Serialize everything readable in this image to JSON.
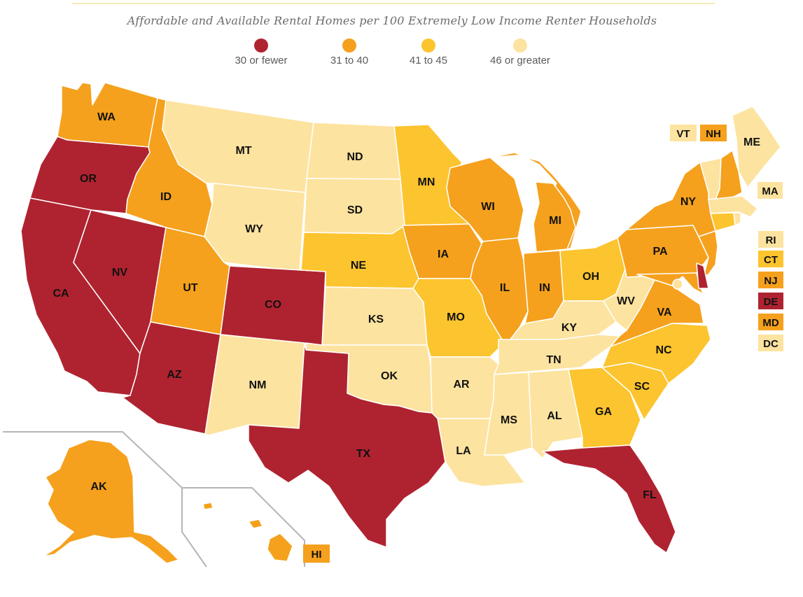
{
  "title": "Affordable and Available Rental Homes per 100 Extremely Low Income Renter Households",
  "colors": {
    "c1": "#af2330",
    "c2": "#f5a11d",
    "c3": "#fcc42e",
    "c4": "#fde3a0"
  },
  "legend": [
    {
      "label": "30 or fewer",
      "color_key": "c1"
    },
    {
      "label": "31 to 40",
      "color_key": "c2"
    },
    {
      "label": "41 to 45",
      "color_key": "c3"
    },
    {
      "label": "46 or greater",
      "color_key": "c4"
    }
  ],
  "states": {
    "WA": {
      "label": "WA",
      "category": "c2"
    },
    "OR": {
      "label": "OR",
      "category": "c1"
    },
    "CA": {
      "label": "CA",
      "category": "c1"
    },
    "NV": {
      "label": "NV",
      "category": "c1"
    },
    "ID": {
      "label": "ID",
      "category": "c2"
    },
    "MT": {
      "label": "MT",
      "category": "c4"
    },
    "WY": {
      "label": "WY",
      "category": "c4"
    },
    "UT": {
      "label": "UT",
      "category": "c2"
    },
    "AZ": {
      "label": "AZ",
      "category": "c1"
    },
    "CO": {
      "label": "CO",
      "category": "c1"
    },
    "NM": {
      "label": "NM",
      "category": "c4"
    },
    "ND": {
      "label": "ND",
      "category": "c4"
    },
    "SD": {
      "label": "SD",
      "category": "c4"
    },
    "NE": {
      "label": "NE",
      "category": "c3"
    },
    "KS": {
      "label": "KS",
      "category": "c4"
    },
    "OK": {
      "label": "OK",
      "category": "c4"
    },
    "TX": {
      "label": "TX",
      "category": "c1"
    },
    "MN": {
      "label": "MN",
      "category": "c3"
    },
    "IA": {
      "label": "IA",
      "category": "c2"
    },
    "MO": {
      "label": "MO",
      "category": "c3"
    },
    "AR": {
      "label": "AR",
      "category": "c4"
    },
    "LA": {
      "label": "LA",
      "category": "c4"
    },
    "WI": {
      "label": "WI",
      "category": "c2"
    },
    "IL": {
      "label": "IL",
      "category": "c2"
    },
    "MI": {
      "label": "MI",
      "category": "c2"
    },
    "IN": {
      "label": "IN",
      "category": "c2"
    },
    "OH": {
      "label": "OH",
      "category": "c3"
    },
    "KY": {
      "label": "KY",
      "category": "c4"
    },
    "TN": {
      "label": "TN",
      "category": "c4"
    },
    "MS": {
      "label": "MS",
      "category": "c4"
    },
    "AL": {
      "label": "AL",
      "category": "c4"
    },
    "GA": {
      "label": "GA",
      "category": "c3"
    },
    "FL": {
      "label": "FL",
      "category": "c1"
    },
    "SC": {
      "label": "SC",
      "category": "c3"
    },
    "NC": {
      "label": "NC",
      "category": "c3"
    },
    "VA": {
      "label": "VA",
      "category": "c2"
    },
    "WV": {
      "label": "WV",
      "category": "c4"
    },
    "PA": {
      "label": "PA",
      "category": "c2"
    },
    "NY": {
      "label": "NY",
      "category": "c2"
    },
    "ME": {
      "label": "ME",
      "category": "c4"
    },
    "VT": {
      "label": "VT",
      "category": "c4"
    },
    "NH": {
      "label": "NH",
      "category": "c2"
    },
    "MA": {
      "label": "MA",
      "category": "c4"
    },
    "RI": {
      "label": "RI",
      "category": "c4"
    },
    "CT": {
      "label": "CT",
      "category": "c3"
    },
    "NJ": {
      "label": "NJ",
      "category": "c2"
    },
    "DE": {
      "label": "DE",
      "category": "c1"
    },
    "MD": {
      "label": "MD",
      "category": "c2"
    },
    "DC": {
      "label": "DC",
      "category": "c4"
    },
    "AK": {
      "label": "AK",
      "category": "c2"
    },
    "HI": {
      "label": "HI",
      "category": "c2"
    }
  }
}
